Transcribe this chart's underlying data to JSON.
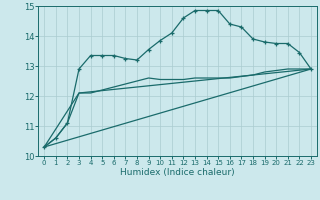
{
  "xlabel": "Humidex (Indice chaleur)",
  "bg_color": "#cce8ec",
  "line_color": "#1a6b6b",
  "grid_color": "#aaccd0",
  "xlim": [
    -0.5,
    23.5
  ],
  "ylim": [
    10,
    15
  ],
  "yticks": [
    10,
    11,
    12,
    13,
    14,
    15
  ],
  "xticks": [
    0,
    1,
    2,
    3,
    4,
    5,
    6,
    7,
    8,
    9,
    10,
    11,
    12,
    13,
    14,
    15,
    16,
    17,
    18,
    19,
    20,
    21,
    22,
    23
  ],
  "series1_x": [
    0,
    1,
    2,
    3,
    4,
    5,
    6,
    7,
    8,
    9,
    10,
    11,
    12,
    13,
    14,
    15,
    16,
    17,
    18,
    19,
    20,
    21,
    22,
    23
  ],
  "series1_y": [
    10.3,
    10.6,
    11.1,
    12.9,
    13.35,
    13.35,
    13.35,
    13.25,
    13.2,
    13.55,
    13.85,
    14.1,
    14.6,
    14.85,
    14.85,
    14.85,
    14.4,
    14.3,
    13.9,
    13.8,
    13.75,
    13.75,
    13.45,
    12.9
  ],
  "series2_x": [
    0,
    1,
    2,
    3,
    4,
    5,
    6,
    7,
    8,
    9,
    10,
    11,
    12,
    13,
    14,
    15,
    16,
    17,
    18,
    19,
    20,
    21,
    22,
    23
  ],
  "series2_y": [
    10.3,
    10.6,
    11.1,
    12.1,
    12.1,
    12.2,
    12.3,
    12.4,
    12.5,
    12.6,
    12.55,
    12.55,
    12.55,
    12.6,
    12.6,
    12.6,
    12.6,
    12.65,
    12.7,
    12.8,
    12.85,
    12.9,
    12.9,
    12.9
  ],
  "series3_x": [
    0,
    23
  ],
  "series3_y": [
    10.3,
    12.9
  ],
  "series4_x": [
    0,
    3,
    23
  ],
  "series4_y": [
    10.3,
    12.1,
    12.9
  ]
}
